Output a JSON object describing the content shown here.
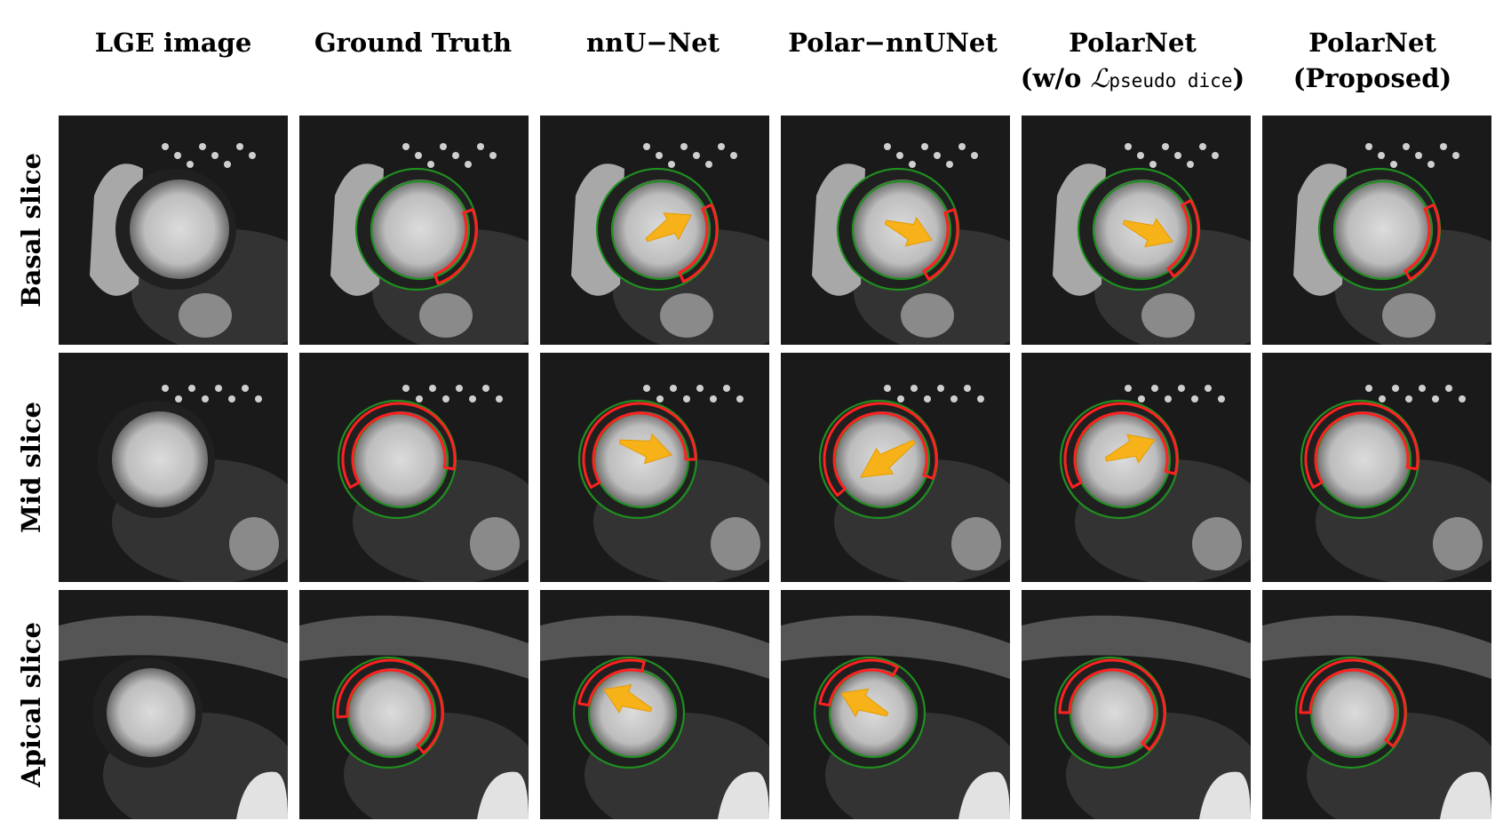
{
  "columns": [
    {
      "line1": "LGE image"
    },
    {
      "line1": "Ground Truth"
    },
    {
      "line1": "nnU−Net"
    },
    {
      "line1": "Polar−nnUNet"
    },
    {
      "line1": "PolarNet",
      "line2_prefix": "(w/o ",
      "line2_symbol": "ℒ",
      "line2_sub": "pseudo dice",
      "line2_suffix": ")"
    },
    {
      "line1": "PolarNet",
      "line2": "(Proposed)"
    }
  ],
  "rows": [
    {
      "label": "Basal slice"
    },
    {
      "label": "Mid slice"
    },
    {
      "label": "Apical slice"
    }
  ],
  "colors": {
    "myocardium_contour": "#1f8f1f",
    "scar_contour": "#ff2020",
    "arrow": "#f7b21a"
  }
}
